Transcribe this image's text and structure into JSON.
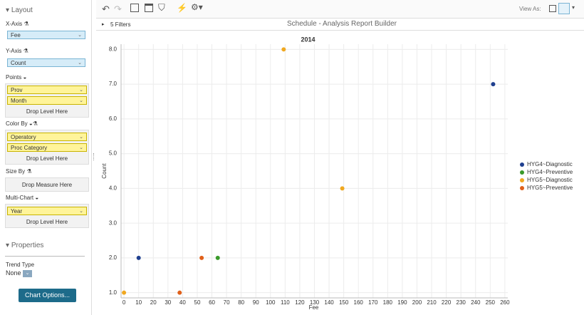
{
  "sidebar": {
    "layout": "Layout",
    "x_axis": {
      "label": "X-Axis",
      "field": "Fee"
    },
    "y_axis": {
      "label": "Y-Axis",
      "field": "Count"
    },
    "points": {
      "label": "Points",
      "fields": [
        "Prov",
        "Month"
      ],
      "drop": "Drop Level Here"
    },
    "color_by": {
      "label": "Color By",
      "fields": [
        "Operatory",
        "Proc Category"
      ],
      "drop": "Drop Level Here"
    },
    "size_by": {
      "label": "Size By",
      "drop": "Drop Measure Here"
    },
    "multi_chart": {
      "label": "Multi-Chart",
      "fields": [
        "Year"
      ],
      "drop": "Drop Level Here"
    },
    "properties": "Properties",
    "trend_type": {
      "label": "Trend Type",
      "value": "None"
    },
    "chart_options": "Chart Options..."
  },
  "toolbar": {
    "view_as": "View As:"
  },
  "header": {
    "filters": "5 Filters",
    "title": "Schedule - Analysis Report Builder"
  },
  "chart_data": {
    "type": "scatter",
    "title": "2014",
    "x_label": "Fee",
    "y_label": "Count",
    "series": [
      {
        "name": "HYG4~Diagnostic",
        "color": "#1f3f8f",
        "x": [
          10,
          252
        ],
        "y": [
          2,
          7
        ]
      },
      {
        "name": "HYG4~Preventive",
        "color": "#3a9a2a",
        "x": [
          64
        ],
        "y": [
          2
        ]
      },
      {
        "name": "HYG5~Diagnostic",
        "color": "#f0a820",
        "x": [
          0,
          109,
          149
        ],
        "y": [
          1,
          8,
          4
        ]
      },
      {
        "name": "HYG5~Preventive",
        "color": "#e0601a",
        "x": [
          38,
          53
        ],
        "y": [
          1,
          2
        ]
      }
    ],
    "xlim": [
      -2,
      262
    ],
    "ylim": [
      0.85,
      8.15
    ],
    "xticks": [
      0,
      10,
      20,
      30,
      40,
      50,
      60,
      70,
      80,
      90,
      100,
      110,
      120,
      130,
      140,
      150,
      160,
      170,
      180,
      190,
      200,
      210,
      220,
      230,
      240,
      250,
      260
    ],
    "yticks": [
      {
        "value": 1,
        "label": "1.0"
      },
      {
        "value": 2,
        "label": "2.0"
      },
      {
        "value": 3,
        "label": "3.0"
      },
      {
        "value": 4,
        "label": "4.0"
      },
      {
        "value": 5,
        "label": "5.0"
      },
      {
        "value": 6,
        "label": "6.0"
      },
      {
        "value": 7,
        "label": "7.0"
      },
      {
        "value": 8,
        "label": "8.0"
      }
    ],
    "grid": true,
    "legend": "right"
  }
}
